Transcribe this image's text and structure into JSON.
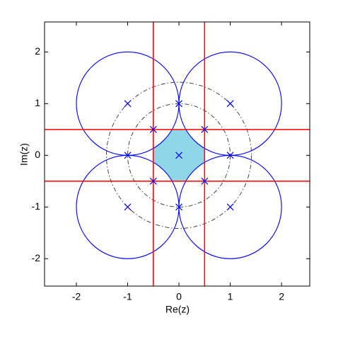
{
  "chart_data": {
    "type": "complex-plane",
    "xlabel": "Re(z)",
    "ylabel": "Im(z)",
    "xlim": [
      -2.62,
      2.55
    ],
    "ylim": [
      -2.53,
      2.58
    ],
    "xticks": [
      -2,
      -1,
      0,
      1,
      2
    ],
    "yticks": [
      -2,
      -1,
      0,
      1,
      2
    ],
    "circles": {
      "color": "#0000ff",
      "cx": [
        -1,
        1,
        -1,
        1
      ],
      "cy": [
        1,
        1,
        -1,
        -1
      ],
      "r": [
        1,
        1,
        1,
        1
      ]
    },
    "dashed_circles": {
      "color": "#333333",
      "cx": [
        0,
        0
      ],
      "cy": [
        0,
        0
      ],
      "r": [
        1,
        1.414
      ]
    },
    "vlines": {
      "color": "#ff0000",
      "x": [
        -0.5,
        0.5
      ]
    },
    "hlines": {
      "color": "#ff0000",
      "y": [
        -0.5,
        0.5
      ]
    },
    "points": {
      "color": "#0000ff",
      "x": [
        -1,
        0,
        1,
        -0.5,
        0.5,
        -1,
        0,
        1,
        -0.5,
        0.5,
        -1,
        0,
        1
      ],
      "y": [
        1,
        1,
        1,
        0.5,
        0.5,
        0,
        0,
        0,
        -0.5,
        -0.5,
        -1,
        -1,
        -1
      ]
    },
    "fill_color": "#8fd6e8"
  }
}
